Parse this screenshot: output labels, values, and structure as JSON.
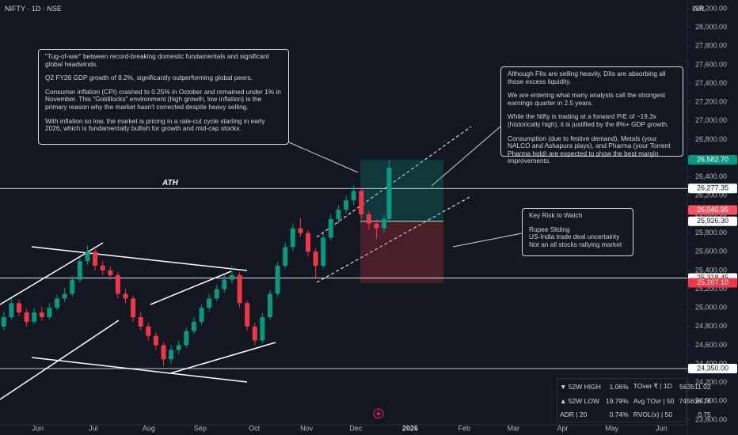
{
  "header": {
    "symbol": "NIFTY · 1D · NSE",
    "currency": "INR"
  },
  "chart_data": {
    "type": "candlestick",
    "x": [
      0,
      3,
      6,
      9,
      12,
      15,
      18,
      21,
      24,
      27,
      30,
      33,
      36,
      39,
      42,
      45,
      48,
      51,
      54,
      57,
      60,
      63,
      66,
      69,
      72,
      75,
      78,
      81,
      84,
      87,
      90,
      93,
      96,
      99,
      102,
      105,
      108,
      111,
      114,
      117,
      120,
      123,
      126,
      129,
      132,
      135,
      138,
      141,
      144,
      147,
      150,
      152
    ],
    "open": [
      24800,
      24900,
      25050,
      24950,
      24850,
      24950,
      24900,
      25000,
      25100,
      25150,
      25300,
      25500,
      25600,
      25450,
      25400,
      25350,
      25150,
      25100,
      24900,
      24800,
      24700,
      24600,
      24450,
      24550,
      24600,
      24750,
      24850,
      25000,
      25100,
      25200,
      25300,
      25350,
      25050,
      24800,
      24650,
      24900,
      25150,
      25450,
      25650,
      25850,
      25800,
      25600,
      25450,
      25750,
      25950,
      26050,
      26150,
      26250,
      26000,
      25900,
      25850,
      25950
    ],
    "high": [
      24960,
      25100,
      25090,
      24990,
      25000,
      25010,
      25050,
      25140,
      25210,
      25340,
      25540,
      25670,
      25630,
      25500,
      25440,
      25380,
      25200,
      25130,
      24950,
      24840,
      24740,
      24630,
      24600,
      24650,
      24790,
      24900,
      25040,
      25150,
      25250,
      25350,
      25450,
      25380,
      25080,
      24840,
      24940,
      25190,
      25490,
      25700,
      25900,
      25960,
      25830,
      25640,
      25790,
      26000,
      26100,
      26200,
      26310,
      26280,
      26040,
      25950,
      26000,
      26582.7
    ],
    "low": [
      24760,
      24870,
      24910,
      24800,
      24820,
      24860,
      24870,
      24970,
      25060,
      25120,
      25270,
      25460,
      25400,
      25350,
      25300,
      25100,
      25050,
      24850,
      24760,
      24650,
      24550,
      24380,
      24400,
      24500,
      24570,
      24720,
      24820,
      24960,
      25070,
      25160,
      25260,
      25000,
      24760,
      24600,
      24620,
      24870,
      25120,
      25420,
      25610,
      25760,
      25550,
      25320,
      25420,
      25720,
      25900,
      26010,
      26100,
      25950,
      25840,
      25740,
      25800,
      25930
    ],
    "close": [
      24900,
      25050,
      24950,
      24850,
      24950,
      24900,
      25000,
      25100,
      25150,
      25300,
      25500,
      25600,
      25450,
      25400,
      25350,
      25150,
      25100,
      24900,
      24800,
      24700,
      24600,
      24450,
      24550,
      24600,
      24750,
      24850,
      25000,
      25100,
      25200,
      25300,
      25350,
      25050,
      24800,
      24650,
      24900,
      25150,
      25450,
      25650,
      25850,
      25800,
      25600,
      25450,
      25750,
      25950,
      26050,
      26150,
      26250,
      26000,
      25900,
      25850,
      25950,
      26500
    ],
    "up_color": "#089981",
    "down_color": "#f23645",
    "xlim": [
      -1.5,
      269.6
    ],
    "xticks": [
      {
        "value": 13.4,
        "label": "Jun"
      },
      {
        "value": 35.3,
        "label": "Jul"
      },
      {
        "value": 57.2,
        "label": "Aug"
      },
      {
        "value": 77.5,
        "label": "Sep"
      },
      {
        "value": 98.8,
        "label": "Oct"
      },
      {
        "value": 119.4,
        "label": "Nov"
      },
      {
        "value": 138.8,
        "label": "Dec"
      },
      {
        "value": 160.3,
        "label": "2026"
      },
      {
        "value": 181.6,
        "label": "Feb"
      },
      {
        "value": 201,
        "label": "Mar"
      },
      {
        "value": 220.4,
        "label": "Apr"
      },
      {
        "value": 239.8,
        "label": "May"
      },
      {
        "value": 259.4,
        "label": "Jun"
      }
    ],
    "ylim": [
      23800,
      28200
    ],
    "yticks": [
      {
        "value": 28200,
        "label": "28,200.00"
      },
      {
        "value": 28000,
        "label": "28,000.00"
      },
      {
        "value": 27800,
        "label": "27,800.00"
      },
      {
        "value": 27600,
        "label": "27,600.00"
      },
      {
        "value": 27400,
        "label": "27,400.00"
      },
      {
        "value": 27200,
        "label": "27,200.00"
      },
      {
        "value": 27000,
        "label": "27,000.00"
      },
      {
        "value": 26800,
        "label": "26,800.00"
      },
      {
        "value": 26600,
        "label": "26,600.00"
      },
      {
        "value": 26400,
        "label": "26,400.00"
      },
      {
        "value": 26200,
        "label": "26,200.00"
      },
      {
        "value": 26000,
        "label": "26,000.00"
      },
      {
        "value": 25800,
        "label": "25,800.00"
      },
      {
        "value": 25600,
        "label": "25,600.00"
      },
      {
        "value": 25400,
        "label": "25,400.00"
      },
      {
        "value": 25200,
        "label": "25,200.00"
      },
      {
        "value": 25000,
        "label": "25,000.00"
      },
      {
        "value": 24800,
        "label": "24,800.00"
      },
      {
        "value": 24600,
        "label": "24,600.00"
      },
      {
        "value": 24400,
        "label": "24,400.00"
      },
      {
        "value": 24200,
        "label": "24,200.00"
      },
      {
        "value": 24000,
        "label": "24,000.00"
      },
      {
        "value": 23800,
        "label": "23,800.00"
      }
    ],
    "price_labels": [
      {
        "value": 26582.7,
        "label": "26,582.70",
        "color": "#089981"
      },
      {
        "value": 26277.35,
        "label": "26,277.35",
        "color": "#ffffff",
        "line": true
      },
      {
        "value": 26046.95,
        "label": "26,046.95",
        "color": "#f7525f"
      },
      {
        "value": 25926.3,
        "label": "25,926.30",
        "color": "#ffffff"
      },
      {
        "value": 25318.45,
        "label": "25,318.45",
        "color": "#ffffff",
        "line": true
      },
      {
        "value": 25267.1,
        "label": "25,267.10",
        "color": "#f23645"
      },
      {
        "value": 24350,
        "label": "24,350.00",
        "color": "#ffffff",
        "line": true
      }
    ],
    "annotation": "ATH"
  },
  "notes": [
    {
      "paragraphs": [
        "\"Tug-of-war\" between record-breaking domestic fundamentals and significant global headwinds.",
        "Q2 FY26 GDP growth of 8.2%, significantly outperforming global peers.",
        "Consumer inflation (CPI) crashed to 0.25% in October and remained under 1% in November. This \"Goldilocks\" environment (high growth, low inflation) is the primary reason why the market hasn't corrected despite heavy selling.",
        "With inflation so low, the market is pricing in a rate-cut cycle starting in early 2026, which is fundamentally bullish for growth and mid-cap stocks."
      ]
    },
    {
      "paragraphs": [
        "Although FIIs are selling heavily, DIIs are absorbing all those excess liquidity.",
        "We are entering what many analysts call the strongest earnings quarter in 2.5 years.",
        "While the Nifty is trading at a forward P/E of ~19.3x (historically high), it is justified by the 8%+ GDP growth.",
        "Consumption (due to festive demand), Metals (your NALCO and Ashapura plays), and Pharma (your Torrent Pharma hold) are expected to show the best margin improvements."
      ]
    },
    {
      "paragraphs": [
        "Key Risk to Watch",
        "Rupee Sliding\nUS-India trade deal uncertainty\nNot an all stocks rallying market"
      ]
    }
  ],
  "stats_table": {
    "rows": [
      [
        "▼ 52W HIGH",
        "1.06%",
        "TOver ₹ | 1D",
        "563511.02"
      ],
      [
        "▲ 52W LOW",
        "19.79%",
        "Avg TOvr | 50",
        "745836.76"
      ],
      [
        "ADR | 20",
        "0.74%",
        "RVOL(x) | 50",
        "0.75"
      ]
    ]
  }
}
